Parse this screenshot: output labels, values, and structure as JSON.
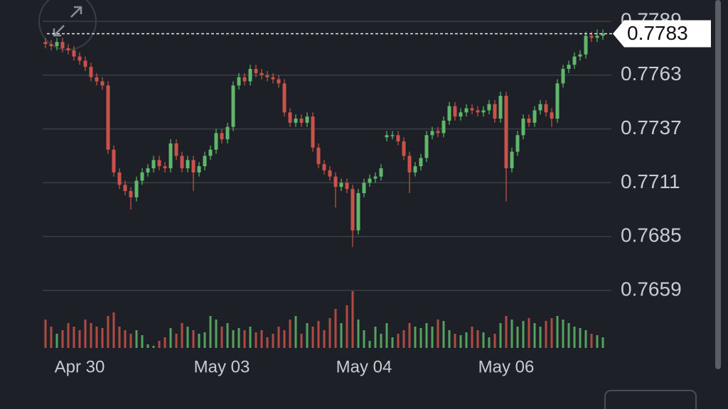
{
  "chart_data": {
    "type": "candlestick",
    "categories": [
      null,
      null,
      null,
      null,
      null,
      null,
      "Apr 30",
      null,
      null,
      null,
      null,
      null,
      null,
      null,
      null,
      null,
      null,
      null,
      null,
      null,
      null,
      null,
      null,
      null,
      null,
      null,
      null,
      null,
      null,
      null,
      null,
      "May 03",
      null,
      null,
      null,
      null,
      null,
      null,
      null,
      null,
      null,
      null,
      null,
      null,
      null,
      null,
      null,
      null,
      null,
      null,
      null,
      null,
      null,
      null,
      null,
      null,
      "May 04",
      null,
      null,
      null,
      null,
      null,
      null,
      null,
      null,
      null,
      null,
      null,
      null,
      null,
      null,
      null,
      null,
      null,
      null,
      null,
      null,
      null,
      null,
      null,
      null,
      "May 06",
      null,
      null,
      null,
      null,
      null,
      null,
      null,
      null,
      null,
      null,
      null,
      null,
      null,
      null,
      null,
      null,
      null
    ],
    "open": [
      0.7779,
      0.7778,
      0.7777,
      0.7779,
      0.7776,
      0.7775,
      0.7772,
      0.777,
      0.7767,
      0.7762,
      0.776,
      0.7758,
      0.7727,
      0.7716,
      0.771,
      0.7707,
      0.7704,
      0.7712,
      0.7716,
      0.7718,
      0.7722,
      0.7719,
      0.7718,
      0.773,
      0.7724,
      0.7718,
      0.7722,
      0.7716,
      0.7719,
      0.7724,
      0.7727,
      0.7735,
      0.7732,
      0.7738,
      0.7758,
      0.7762,
      0.776,
      0.7766,
      0.7764,
      0.7763,
      0.7762,
      0.7761,
      0.7759,
      0.7745,
      0.774,
      0.7742,
      0.774,
      0.7743,
      0.7728,
      0.772,
      0.7717,
      0.7714,
      0.7709,
      0.7711,
      0.7708,
      0.7688,
      0.7706,
      0.7711,
      0.7713,
      0.7714,
      0.7733,
      0.7734,
      0.7734,
      0.7731,
      0.7724,
      0.7716,
      0.7719,
      0.7723,
      0.7734,
      0.7736,
      0.7735,
      0.7741,
      0.7748,
      0.7743,
      0.7745,
      0.7747,
      0.7746,
      0.7745,
      0.7746,
      0.7749,
      0.7742,
      0.7753,
      0.7718,
      0.7726,
      0.7734,
      0.7742,
      0.774,
      0.7746,
      0.7749,
      0.7745,
      0.7742,
      0.7759,
      0.7766,
      0.7768,
      0.7772,
      0.7773,
      0.7782,
      0.7781,
      0.7782
    ],
    "high": [
      0.7781,
      0.778,
      0.7781,
      0.7781,
      0.7778,
      0.7777,
      0.7774,
      0.7772,
      0.7769,
      0.7764,
      0.7762,
      0.776,
      0.7729,
      0.7718,
      0.7712,
      0.7709,
      0.7714,
      0.7718,
      0.772,
      0.7724,
      0.7724,
      0.7721,
      0.7732,
      0.7732,
      0.7726,
      0.7724,
      0.7724,
      0.7721,
      0.7726,
      0.7729,
      0.7737,
      0.7737,
      0.774,
      0.776,
      0.7764,
      0.7764,
      0.7768,
      0.7768,
      0.7766,
      0.7765,
      0.7764,
      0.7763,
      0.7761,
      0.7747,
      0.7744,
      0.7744,
      0.7745,
      0.7745,
      0.773,
      0.7722,
      0.7719,
      0.7716,
      0.7713,
      0.7713,
      0.771,
      0.7708,
      0.7713,
      0.7715,
      0.7716,
      0.772,
      0.7736,
      0.7736,
      0.7736,
      0.7733,
      0.7726,
      0.7721,
      0.7725,
      0.7736,
      0.7738,
      0.7738,
      0.7743,
      0.775,
      0.775,
      0.7747,
      0.7749,
      0.7749,
      0.7748,
      0.7748,
      0.7751,
      0.7751,
      0.7755,
      0.7755,
      0.7728,
      0.7736,
      0.7744,
      0.7744,
      0.7748,
      0.7751,
      0.7751,
      0.7747,
      0.7761,
      0.7768,
      0.777,
      0.7774,
      0.7775,
      0.7784,
      0.7784,
      0.7785,
      0.7785
    ],
    "low": [
      0.7776,
      0.7775,
      0.7775,
      0.7774,
      0.7773,
      0.777,
      0.7768,
      0.7765,
      0.776,
      0.7758,
      0.7756,
      0.7725,
      0.7714,
      0.7708,
      0.7705,
      0.7698,
      0.7702,
      0.771,
      0.7714,
      0.7716,
      0.7717,
      0.7716,
      0.7716,
      0.7722,
      0.7716,
      0.7716,
      0.7707,
      0.7714,
      0.7717,
      0.7722,
      0.7725,
      0.773,
      0.773,
      0.7736,
      0.7756,
      0.7758,
      0.7758,
      0.7762,
      0.7761,
      0.776,
      0.7759,
      0.7757,
      0.7743,
      0.7738,
      0.7738,
      0.7738,
      0.7738,
      0.7726,
      0.7718,
      0.7715,
      0.7712,
      0.7699,
      0.7707,
      0.7706,
      0.768,
      0.7686,
      0.7704,
      0.7709,
      0.7711,
      0.7712,
      0.7731,
      0.7732,
      0.7729,
      0.7722,
      0.7706,
      0.7714,
      0.7717,
      0.7721,
      0.7732,
      0.7733,
      0.7733,
      0.7739,
      0.7741,
      0.7741,
      0.7743,
      0.7744,
      0.7743,
      0.7743,
      0.7744,
      0.774,
      0.774,
      0.7702,
      0.7716,
      0.7724,
      0.7732,
      0.7738,
      0.7738,
      0.7744,
      0.7743,
      0.7738,
      0.774,
      0.7757,
      0.7764,
      0.7766,
      0.777,
      0.7771,
      0.7779,
      0.7779,
      0.778
    ],
    "close": [
      0.7778,
      0.7777,
      0.7779,
      0.7776,
      0.7775,
      0.7772,
      0.777,
      0.7767,
      0.7762,
      0.776,
      0.7758,
      0.7727,
      0.7716,
      0.771,
      0.7707,
      0.7704,
      0.7712,
      0.7716,
      0.7718,
      0.7722,
      0.7719,
      0.7718,
      0.773,
      0.7724,
      0.7718,
      0.7722,
      0.7716,
      0.7719,
      0.7724,
      0.7727,
      0.7735,
      0.7732,
      0.7738,
      0.7758,
      0.7762,
      0.776,
      0.7766,
      0.7764,
      0.7763,
      0.7762,
      0.7761,
      0.7759,
      0.7745,
      0.774,
      0.7742,
      0.774,
      0.7743,
      0.7728,
      0.772,
      0.7717,
      0.7714,
      0.7709,
      0.7711,
      0.7708,
      0.7688,
      0.7706,
      0.7711,
      0.7713,
      0.7714,
      0.7718,
      0.7734,
      0.7734,
      0.7731,
      0.7724,
      0.7716,
      0.7719,
      0.7723,
      0.7734,
      0.7736,
      0.7735,
      0.7741,
      0.7748,
      0.7743,
      0.7745,
      0.7747,
      0.7746,
      0.7745,
      0.7746,
      0.7749,
      0.7742,
      0.7753,
      0.7718,
      0.7726,
      0.7734,
      0.7742,
      0.774,
      0.7746,
      0.7749,
      0.7745,
      0.7742,
      0.7759,
      0.7766,
      0.7768,
      0.7772,
      0.7773,
      0.7782,
      0.7781,
      0.7782,
      0.7783
    ],
    "volume": [
      40,
      30,
      20,
      25,
      35,
      30,
      25,
      40,
      35,
      30,
      28,
      45,
      50,
      30,
      25,
      20,
      25,
      18,
      5,
      3,
      10,
      15,
      28,
      20,
      35,
      30,
      25,
      20,
      22,
      45,
      40,
      30,
      35,
      25,
      28,
      25,
      30,
      22,
      25,
      15,
      20,
      30,
      25,
      40,
      45,
      20,
      35,
      30,
      38,
      25,
      42,
      55,
      35,
      60,
      80,
      40,
      25,
      10,
      30,
      20,
      35,
      15,
      20,
      25,
      35,
      30,
      28,
      35,
      30,
      40,
      38,
      25,
      20,
      18,
      22,
      30,
      25,
      22,
      15,
      20,
      35,
      45,
      40,
      30,
      38,
      42,
      35,
      30,
      38,
      42,
      45,
      40,
      35,
      30,
      28,
      25,
      20,
      18,
      15
    ],
    "up_color": "#5fb86a",
    "down_color": "#c9524b",
    "ylim": [
      0.7659,
      0.7789
    ],
    "yticks": [
      0.7659,
      0.7685,
      0.7711,
      0.7737,
      0.7763,
      0.7789
    ],
    "grid": true,
    "last_price": 0.7783
  }
}
